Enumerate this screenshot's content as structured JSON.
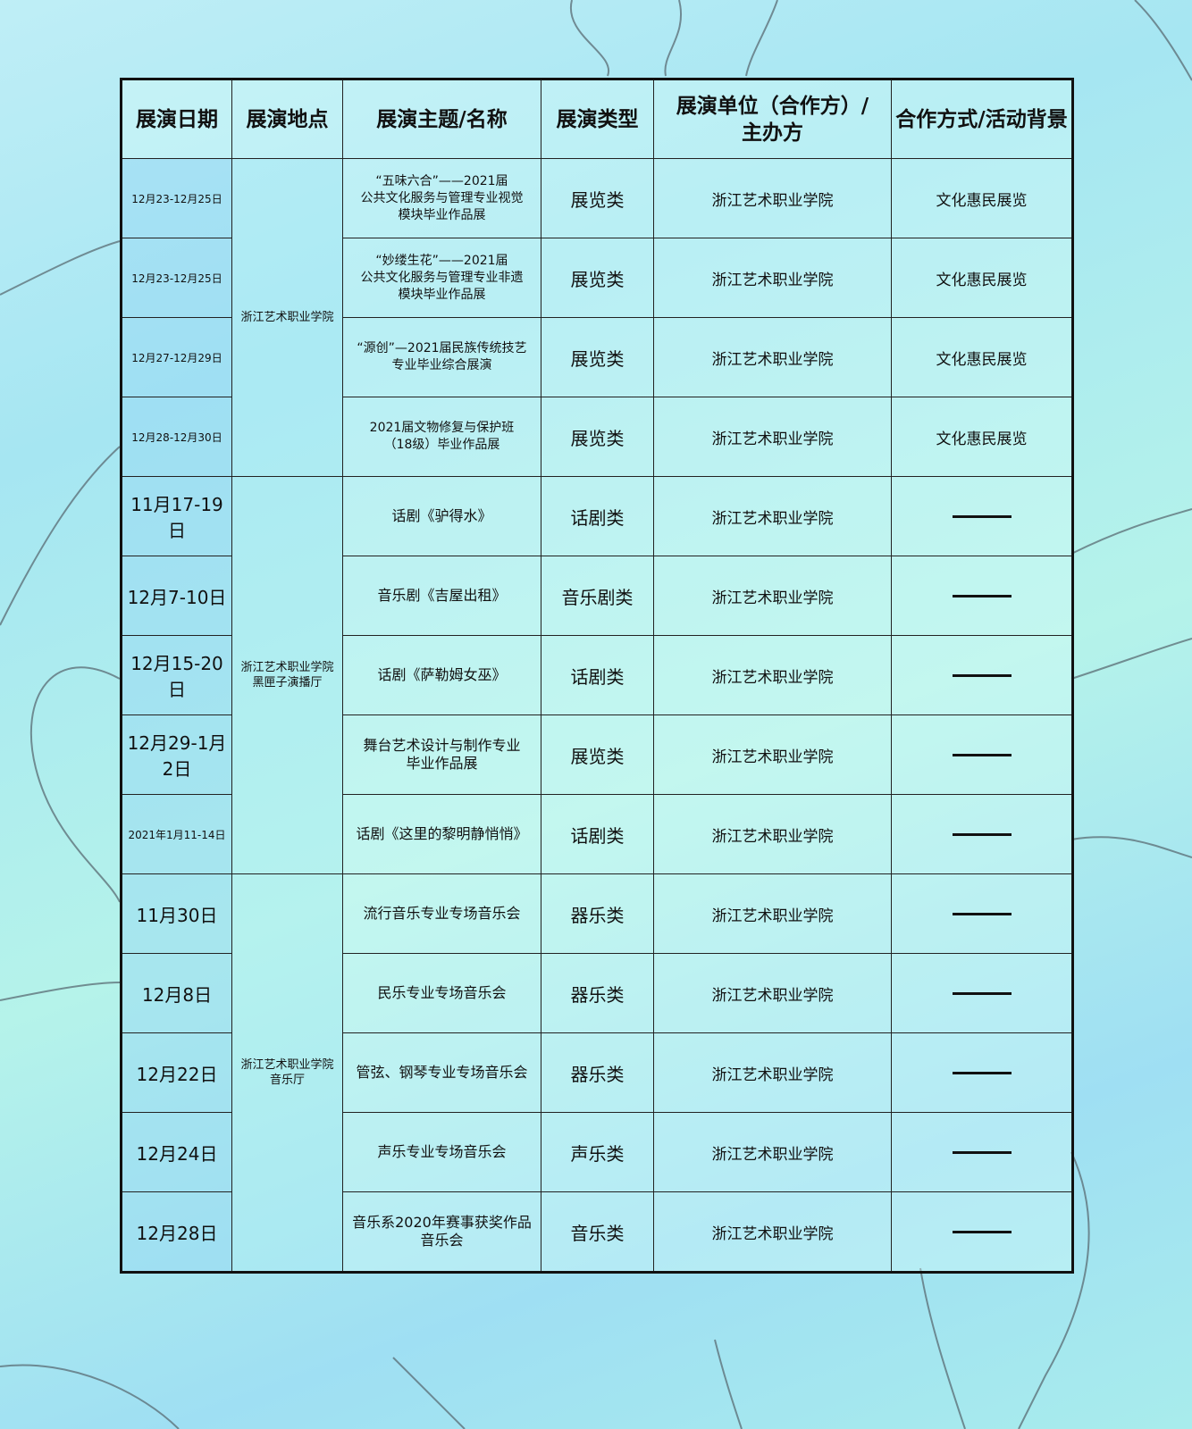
{
  "headers": [
    "展演日期",
    "展演地点",
    "展演主题/名称",
    "展演类型",
    "展演单位（合作方）/\n主办方",
    "合作方式/活动背景"
  ],
  "venues": [
    "浙江艺术职业学院",
    "浙江艺术职业学院\n黑匣子演播厅",
    "浙江艺术职业学院\n音乐厅"
  ],
  "rows": [
    {
      "date": "12月23-12月25日",
      "title": "“五味六合”——2021届\n公共文化服务与管理专业视觉\n模块毕业作品展",
      "type": "展览类",
      "unit": "浙江艺术职业学院",
      "background": "文化惠民展览"
    },
    {
      "date": "12月23-12月25日",
      "title": "“妙缕生花”——2021届\n公共文化服务与管理专业非遗\n模块毕业作品展",
      "type": "展览类",
      "unit": "浙江艺术职业学院",
      "background": "文化惠民展览"
    },
    {
      "date": "12月27-12月29日",
      "title": "“源创”—2021届民族传统技艺\n专业毕业综合展演",
      "type": "展览类",
      "unit": "浙江艺术职业学院",
      "background": "文化惠民展览"
    },
    {
      "date": "12月28-12月30日",
      "title": "2021届文物修复与保护班\n（18级）毕业作品展",
      "type": "展览类",
      "unit": "浙江艺术职业学院",
      "background": "文化惠民展览"
    },
    {
      "date": "11月17-19日",
      "title": "话剧《驴得水》",
      "type": "话剧类",
      "unit": "浙江艺术职业学院",
      "background": "——"
    },
    {
      "date": "12月7-10日",
      "title": "音乐剧《吉屋出租》",
      "type": "音乐剧类",
      "unit": "浙江艺术职业学院",
      "background": "——"
    },
    {
      "date": "12月15-20日",
      "title": "话剧《萨勒姆女巫》",
      "type": "话剧类",
      "unit": "浙江艺术职业学院",
      "background": "——"
    },
    {
      "date": "12月29-1月2日",
      "title": "舞台艺术设计与制作专业\n毕业作品展",
      "type": "展览类",
      "unit": "浙江艺术职业学院",
      "background": "——"
    },
    {
      "date": "2021年1月11-14日",
      "title": "话剧《这里的黎明静悄悄》",
      "type": "话剧类",
      "unit": "浙江艺术职业学院",
      "background": "——"
    },
    {
      "date": "11月30日",
      "title": "流行音乐专业专场音乐会",
      "type": "器乐类",
      "unit": "浙江艺术职业学院",
      "background": "——"
    },
    {
      "date": "12月8日",
      "title": "民乐专业专场音乐会",
      "type": "器乐类",
      "unit": "浙江艺术职业学院",
      "background": "——"
    },
    {
      "date": "12月22日",
      "title": "管弦、钢琴专业专场音乐会",
      "type": "器乐类",
      "unit": "浙江艺术职业学院",
      "background": "——"
    },
    {
      "date": "12月24日",
      "title": "声乐专业专场音乐会",
      "type": "声乐类",
      "unit": "浙江艺术职业学院",
      "background": "——"
    },
    {
      "date": "12月28日",
      "title": "音乐系2020年赛事获奖作品\n音乐会",
      "type": "音乐类",
      "unit": "浙江艺术职业学院",
      "background": "——"
    }
  ]
}
